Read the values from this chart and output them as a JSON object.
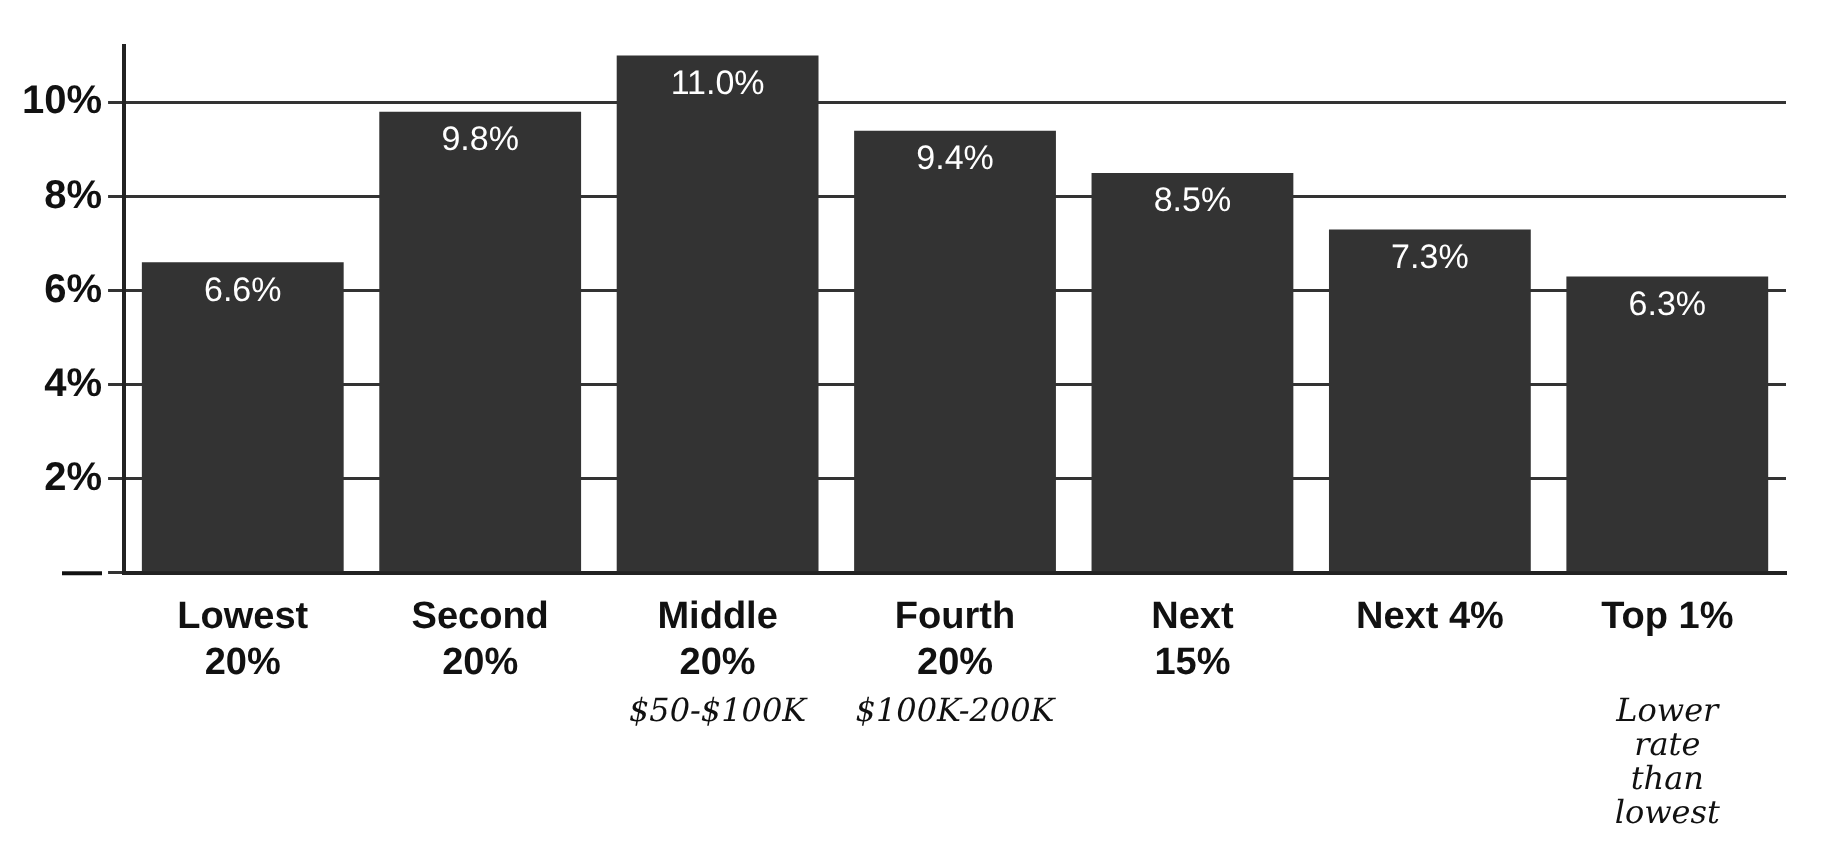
{
  "chart_data": {
    "type": "bar",
    "categories": [
      "Lowest\n20%",
      "Second\n20%",
      "Middle\n20%",
      "Fourth\n20%",
      "Next\n15%",
      "Next 4%",
      "Top 1%"
    ],
    "values": [
      6.6,
      9.8,
      11.0,
      9.4,
      8.5,
      7.3,
      6.3
    ],
    "value_labels": [
      "6.6%",
      "9.8%",
      "11.0%",
      "9.4%",
      "8.5%",
      "7.3%",
      "6.3%"
    ],
    "color": "#333333",
    "ylim": [
      0,
      11.2
    ],
    "yticks": [
      {
        "value": 0,
        "label": "—"
      },
      {
        "value": 2,
        "label": "2%"
      },
      {
        "value": 4,
        "label": "4%"
      },
      {
        "value": 6,
        "label": "6%"
      },
      {
        "value": 8,
        "label": "8%"
      },
      {
        "value": 10,
        "label": "10%"
      }
    ],
    "grid": "y",
    "annotations": [
      "$50-$100K",
      "$100K-200K",
      "Lower rate than lowest"
    ]
  }
}
